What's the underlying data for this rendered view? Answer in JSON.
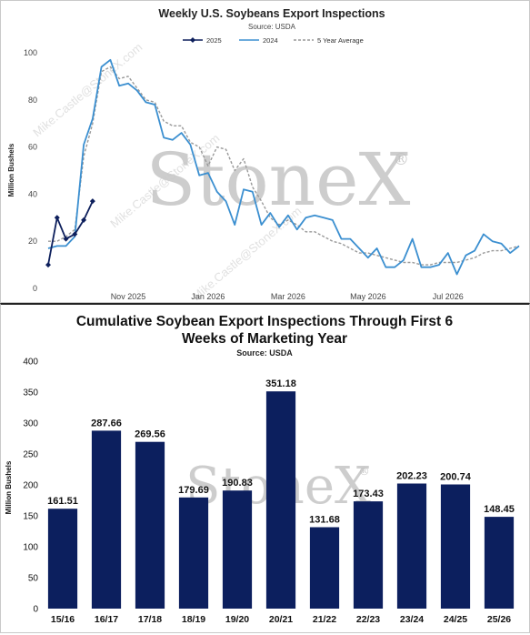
{
  "chart_data": [
    {
      "type": "line",
      "title": "Weekly U.S. Soybeans Export Inspections",
      "subtitle": "Source: USDA",
      "ylabel": "Million Bushels",
      "xlabel": "",
      "ylim": [
        0,
        100
      ],
      "y_ticks": [
        "0",
        "20",
        "40",
        "60",
        "80",
        "100"
      ],
      "x_ticks": [
        "Nov 2025",
        "Jan 2026",
        "Mar 2026",
        "May 2026",
        "Jul 2026"
      ],
      "x_tick_weeks": [
        9,
        18,
        27,
        36,
        45
      ],
      "legend_position": "top",
      "grid": false,
      "series": [
        {
          "name": "2025",
          "color": "#0d1f5c",
          "style": "solid-markers",
          "values": [
            10,
            30,
            21,
            23,
            29,
            37
          ]
        },
        {
          "name": "2024",
          "color": "#3b8fd0",
          "style": "solid",
          "values": [
            17,
            18,
            18,
            22,
            61,
            72,
            94,
            97,
            86,
            87,
            84,
            79,
            78,
            64,
            63,
            66,
            61,
            48,
            49,
            41,
            37,
            27,
            42,
            41,
            27,
            32,
            26,
            31,
            25,
            30,
            31,
            30,
            29,
            21,
            21,
            17,
            13,
            17,
            9,
            9,
            12,
            21,
            9,
            9,
            10,
            15,
            6,
            14,
            16,
            23,
            20,
            19,
            15,
            18
          ]
        },
        {
          "name": "5 Year Average",
          "color": "#999999",
          "style": "dashed",
          "values": [
            20,
            20,
            22,
            25,
            56,
            70,
            92,
            94,
            89,
            90,
            85,
            80,
            79,
            71,
            69,
            69,
            62,
            60,
            52,
            60,
            59,
            50,
            55,
            43,
            37,
            30,
            27,
            29,
            27,
            24,
            24,
            22,
            20,
            19,
            17,
            15,
            15,
            14,
            13,
            12,
            11,
            11,
            10,
            10,
            11,
            11,
            11,
            12,
            13,
            15,
            16,
            16,
            17,
            18
          ]
        }
      ]
    },
    {
      "type": "bar",
      "title": "Cumulative Soybean Export Inspections Through First 6 Weeks of Marketing Year",
      "title_lines": [
        "Cumulative Soybean Export Inspections Through First 6",
        "Weeks of Marketing Year"
      ],
      "subtitle": "Source: USDA",
      "ylabel": "Million Bushels",
      "xlabel": "",
      "ylim": [
        0,
        400
      ],
      "y_ticks": [
        "0",
        "50",
        "100",
        "150",
        "200",
        "250",
        "300",
        "350",
        "400"
      ],
      "bar_color": "#0c1f5e",
      "categories": [
        "15/16",
        "16/17",
        "17/18",
        "18/19",
        "19/20",
        "20/21",
        "21/22",
        "22/23",
        "23/24",
        "24/25",
        "25/26"
      ],
      "values": [
        161.51,
        287.66,
        269.56,
        179.69,
        190.83,
        351.18,
        131.68,
        173.43,
        202.23,
        200.74,
        148.45
      ],
      "data_labels": [
        "161.51",
        "287.66",
        "269.56",
        "179.69",
        "190.83",
        "351.18",
        "131.68",
        "173.43",
        "202.23",
        "200.74",
        "148.45"
      ]
    }
  ],
  "watermark": {
    "brand": "StoneX",
    "registered": "®",
    "diagonal_text": "Mike.Castle@StoneX.com"
  }
}
